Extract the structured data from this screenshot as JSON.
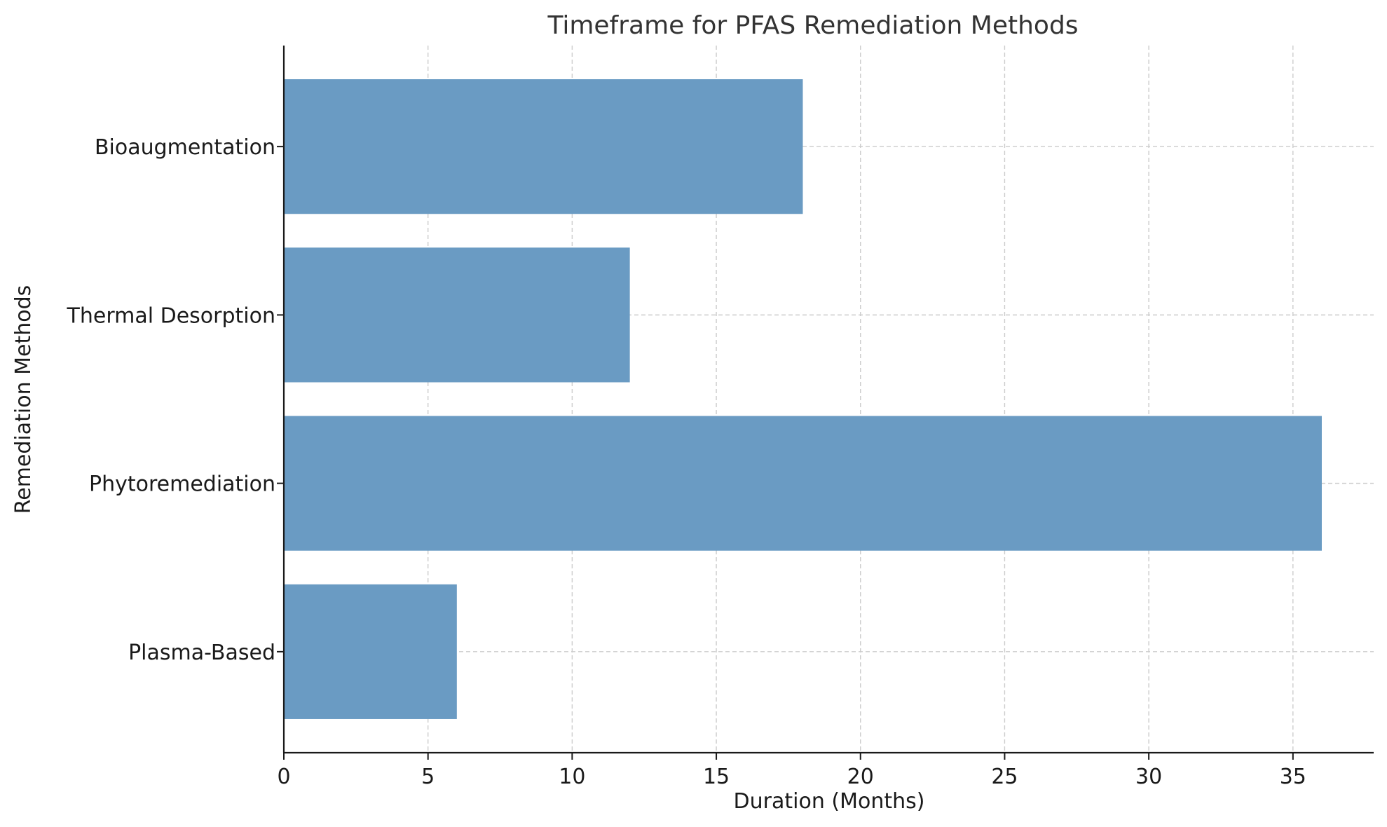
{
  "chart_data": {
    "type": "bar",
    "orientation": "horizontal",
    "title": "Timeframe for PFAS Remediation Methods",
    "xlabel": "Duration (Months)",
    "ylabel": "Remediation Methods",
    "categories": [
      "Plasma-Based",
      "Phytoremediation",
      "Thermal Desorption",
      "Bioaugmentation"
    ],
    "values": [
      6,
      36,
      12,
      18
    ],
    "xlim": [
      0,
      37.8
    ],
    "xticks": [
      0,
      5,
      10,
      15,
      20,
      25,
      30,
      35
    ],
    "grid": true,
    "bar_color": "#6a9bc3",
    "grid_color": "#cccccc",
    "axis_color": "#1a1a1a"
  }
}
